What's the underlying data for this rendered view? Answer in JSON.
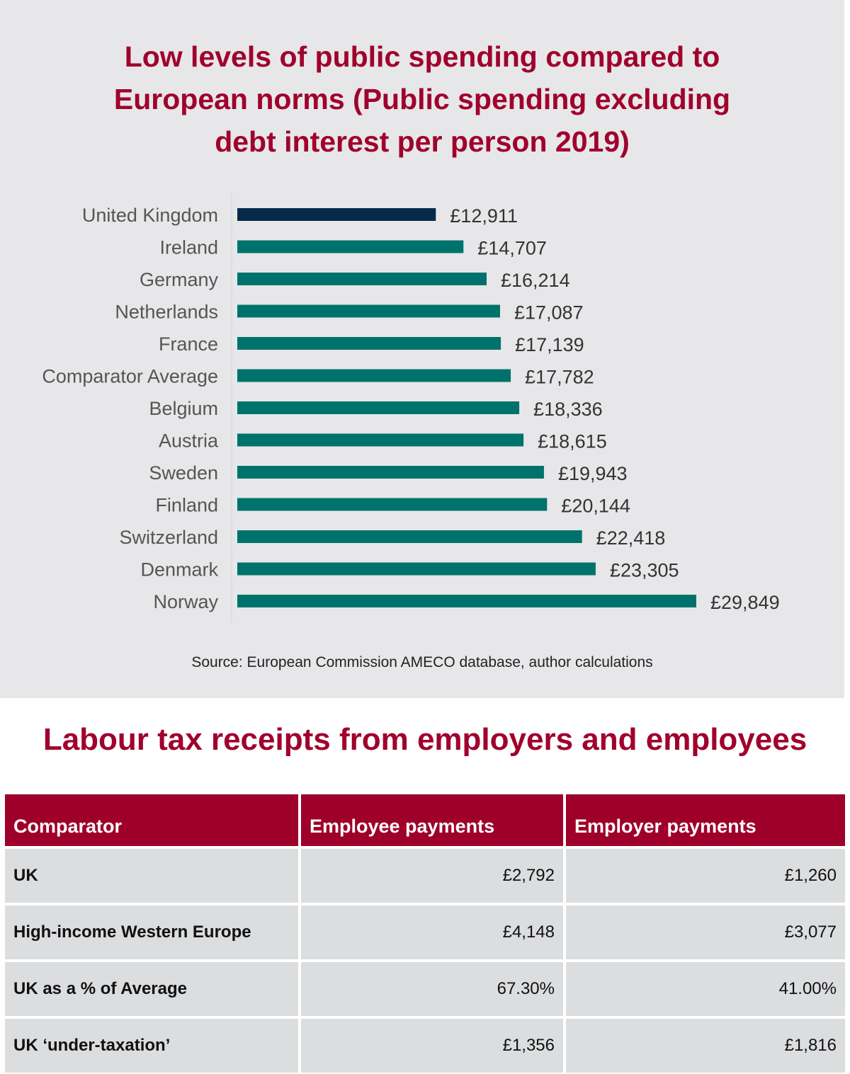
{
  "chart_data": {
    "type": "bar",
    "orientation": "horizontal",
    "title_lines": [
      "Low levels of public spending compared to",
      "European norms (Public spending excluding",
      "debt interest per person 2019)"
    ],
    "categories": [
      "United Kingdom",
      "Ireland",
      "Germany",
      "Netherlands",
      "France",
      "Comparator Average",
      "Belgium",
      "Austria",
      "Sweden",
      "Finland",
      "Switzerland",
      "Denmark",
      "Norway"
    ],
    "values": [
      12911,
      14707,
      16214,
      17087,
      17139,
      17782,
      18336,
      18615,
      19943,
      20144,
      22418,
      23305,
      29849
    ],
    "value_labels": [
      "£12,911",
      "£14,707",
      "£16,214",
      "£17,087",
      "£17,139",
      "£17,782",
      "£18,336",
      "£18,615",
      "£19,943",
      "£20,144",
      "£22,418",
      "£23,305",
      "£29,849"
    ],
    "xlim": [
      0,
      29849
    ],
    "grid": false,
    "colors": {
      "highlight": "#062a4b",
      "default": "#00726c"
    },
    "source": "Source: European Commission AMECO database, author calculations"
  },
  "table": {
    "title": "Labour tax receipts from employers and employees",
    "headers": [
      "Comparator",
      "Employee payments",
      "Employer payments"
    ],
    "rows": [
      [
        "UK",
        "£2,792",
        "£1,260"
      ],
      [
        "High-income Western Europe",
        "£4,148",
        "£3,077"
      ],
      [
        "UK as a % of Average",
        "67.30%",
        "41.00%"
      ],
      [
        "UK ‘under-taxation’",
        "£1,356",
        "£1,816"
      ]
    ],
    "header_color": "#9e0029"
  }
}
